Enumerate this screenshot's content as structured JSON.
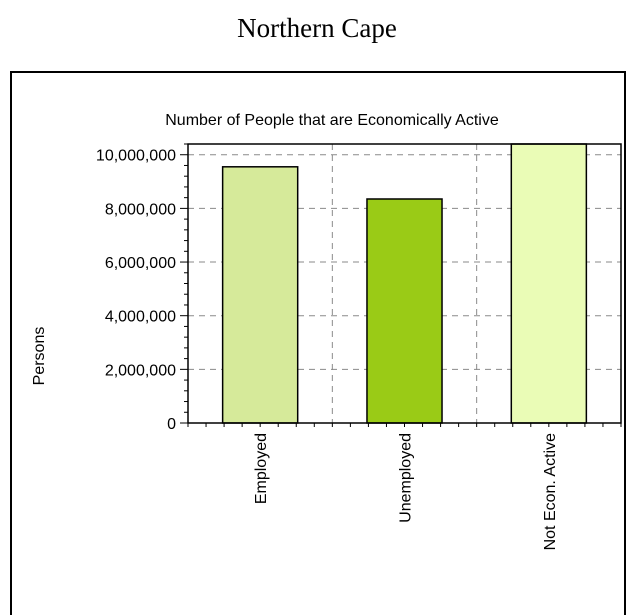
{
  "page": {
    "title": "Northern Cape"
  },
  "chart_data": {
    "type": "bar",
    "title": "Number of People that are Economically Active",
    "xlabel": "",
    "ylabel": "Persons",
    "categories": [
      "Employed",
      "Unemployed",
      "Not Econ. Active"
    ],
    "values": [
      9550000,
      8350000,
      10500000
    ],
    "ylim": [
      0,
      10400000
    ],
    "yticks": [
      0,
      2000000,
      4000000,
      6000000,
      8000000,
      10000000
    ],
    "ytick_labels": [
      "0",
      "2,000,000",
      "4,000,000",
      "6,000,000",
      "8,000,000",
      "10,000,000"
    ],
    "bar_colors": [
      "#d6ea9a",
      "#9acb16",
      "#eafcb6"
    ],
    "grid": true,
    "grid_style": "dashed",
    "legend": "none"
  }
}
